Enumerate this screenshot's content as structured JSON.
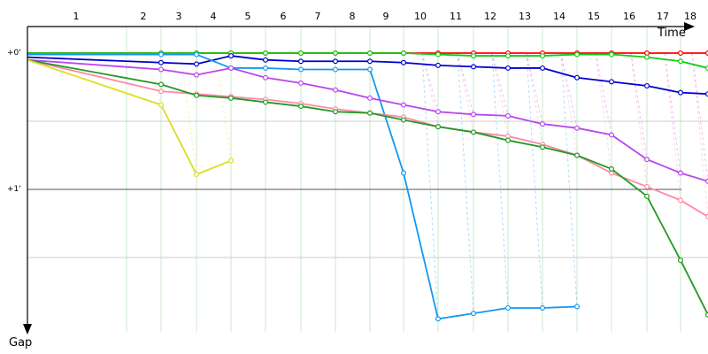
{
  "chart_data": {
    "type": "line",
    "title": "",
    "xlabel": "Time",
    "ylabel": "Gap",
    "x_ticks": [
      "1",
      "2",
      "3",
      "4",
      "5",
      "6",
      "7",
      "8",
      "9",
      "10",
      "11",
      "12",
      "13",
      "14",
      "15",
      "16",
      "17",
      "18"
    ],
    "y_ticks": [
      "+0'",
      "+1'"
    ],
    "ylim": [
      0,
      2
    ],
    "y_inverted": true,
    "grid": true,
    "series": [
      {
        "color": "#ff0000",
        "values": [
          0.0,
          0.0,
          0.0,
          0.0,
          0.0,
          0.0,
          0.0,
          0.0,
          0.0,
          0.0,
          0.0,
          0.0,
          0.0,
          0.0,
          0.0,
          0.0,
          0.0,
          0.0
        ],
        "pit_laps": [
          10,
          11,
          12,
          13,
          14,
          15,
          16,
          17,
          18
        ]
      },
      {
        "color": "#11cc11",
        "values": [
          0.0,
          0.0,
          0.0,
          0.0,
          0.0,
          0.0,
          0.0,
          0.0,
          0.0,
          0.01,
          0.02,
          0.02,
          0.02,
          0.01,
          0.01,
          0.03,
          0.06,
          0.11
        ],
        "pit_laps": []
      },
      {
        "color": "#0000cc",
        "values": [
          0.03,
          0.07,
          0.08,
          0.02,
          0.05,
          0.06,
          0.06,
          0.06,
          0.07,
          0.09,
          0.1,
          0.11,
          0.11,
          0.18,
          0.21,
          0.24,
          0.29,
          0.3
        ],
        "pit_laps": []
      },
      {
        "color": "#1199ee",
        "values": [
          0.01,
          0.01,
          0.01,
          0.11,
          0.11,
          0.12,
          0.12,
          0.12,
          0.88,
          1.95,
          1.91,
          1.87,
          1.87,
          1.86
        ],
        "pit_laps": [
          10,
          11,
          12,
          13,
          14,
          15
        ]
      },
      {
        "color": "#bb44ee",
        "values": [
          0.05,
          0.12,
          0.16,
          0.11,
          0.18,
          0.22,
          0.27,
          0.33,
          0.38,
          0.43,
          0.45,
          0.46,
          0.52,
          0.55,
          0.6,
          0.78,
          0.88,
          0.94
        ],
        "pit_laps": [
          10,
          11,
          12,
          13,
          14,
          15,
          16,
          17,
          18
        ]
      },
      {
        "color": "#ff88aa",
        "values": [
          0.05,
          0.28,
          0.3,
          0.32,
          0.34,
          0.37,
          0.41,
          0.44,
          0.47,
          0.54,
          0.58,
          0.61,
          0.67,
          0.75,
          0.88,
          0.98,
          1.08,
          1.2
        ],
        "pit_laps": [
          10,
          11,
          12,
          13,
          14,
          15,
          16,
          17,
          18
        ]
      },
      {
        "color": "#229922",
        "values": [
          0.05,
          0.23,
          0.31,
          0.33,
          0.36,
          0.39,
          0.43,
          0.44,
          0.49,
          0.54,
          0.58,
          0.64,
          0.69,
          0.75,
          0.85,
          1.05,
          1.52,
          1.92
        ],
        "pit_laps": []
      },
      {
        "color": "#dddd22",
        "values": [
          0.05,
          0.38,
          0.89,
          0.79
        ],
        "pit_laps": [
          2,
          3,
          4
        ]
      }
    ]
  }
}
